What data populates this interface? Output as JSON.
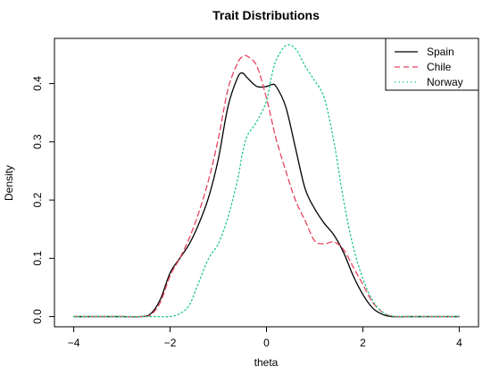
{
  "chart_data": {
    "type": "line",
    "title": "Trait Distributions",
    "xlabel": "theta",
    "ylabel": "Density",
    "xlim": [
      -4,
      4
    ],
    "ylim": [
      0,
      0.47
    ],
    "xticks": [
      "−4",
      "−2",
      "0",
      "2",
      "4"
    ],
    "yticks": [
      "0.0",
      "0.1",
      "0.2",
      "0.3",
      "0.4"
    ],
    "legend_position": "top-right",
    "grid": false,
    "x": [
      -4.0,
      -3.0,
      -2.6,
      -2.4,
      -2.2,
      -2.0,
      -1.8,
      -1.6,
      -1.4,
      -1.2,
      -1.0,
      -0.8,
      -0.6,
      -0.5,
      -0.4,
      -0.2,
      0.0,
      0.1,
      0.2,
      0.4,
      0.6,
      0.8,
      1.0,
      1.2,
      1.4,
      1.6,
      1.8,
      2.0,
      2.2,
      2.4,
      2.6,
      3.0,
      4.0
    ],
    "series": [
      {
        "name": "Spain",
        "color": "#000000",
        "dash": "solid",
        "values": [
          0.0,
          0.0,
          0.0,
          0.005,
          0.03,
          0.075,
          0.1,
          0.125,
          0.16,
          0.205,
          0.27,
          0.36,
          0.41,
          0.418,
          0.41,
          0.395,
          0.395,
          0.398,
          0.395,
          0.36,
          0.29,
          0.22,
          0.185,
          0.16,
          0.14,
          0.11,
          0.07,
          0.038,
          0.015,
          0.004,
          0.0,
          0.0,
          0.0
        ]
      },
      {
        "name": "Chile",
        "color": "#e8455f",
        "dash": "dashed",
        "values": [
          0.0,
          0.0,
          0.0,
          0.003,
          0.025,
          0.07,
          0.1,
          0.135,
          0.18,
          0.235,
          0.305,
          0.39,
          0.435,
          0.446,
          0.447,
          0.43,
          0.375,
          0.34,
          0.305,
          0.25,
          0.2,
          0.165,
          0.13,
          0.125,
          0.128,
          0.115,
          0.085,
          0.055,
          0.025,
          0.008,
          0.001,
          0.0,
          0.0
        ]
      },
      {
        "name": "Norway",
        "color": "#1fc983",
        "dash": "dotted",
        "values": [
          0.0,
          0.0,
          0.0,
          0.0,
          0.0,
          0.0,
          0.005,
          0.02,
          0.06,
          0.1,
          0.125,
          0.17,
          0.235,
          0.28,
          0.31,
          0.335,
          0.37,
          0.41,
          0.44,
          0.465,
          0.46,
          0.43,
          0.405,
          0.375,
          0.3,
          0.2,
          0.12,
          0.065,
          0.028,
          0.008,
          0.001,
          0.0,
          0.0
        ]
      }
    ]
  }
}
